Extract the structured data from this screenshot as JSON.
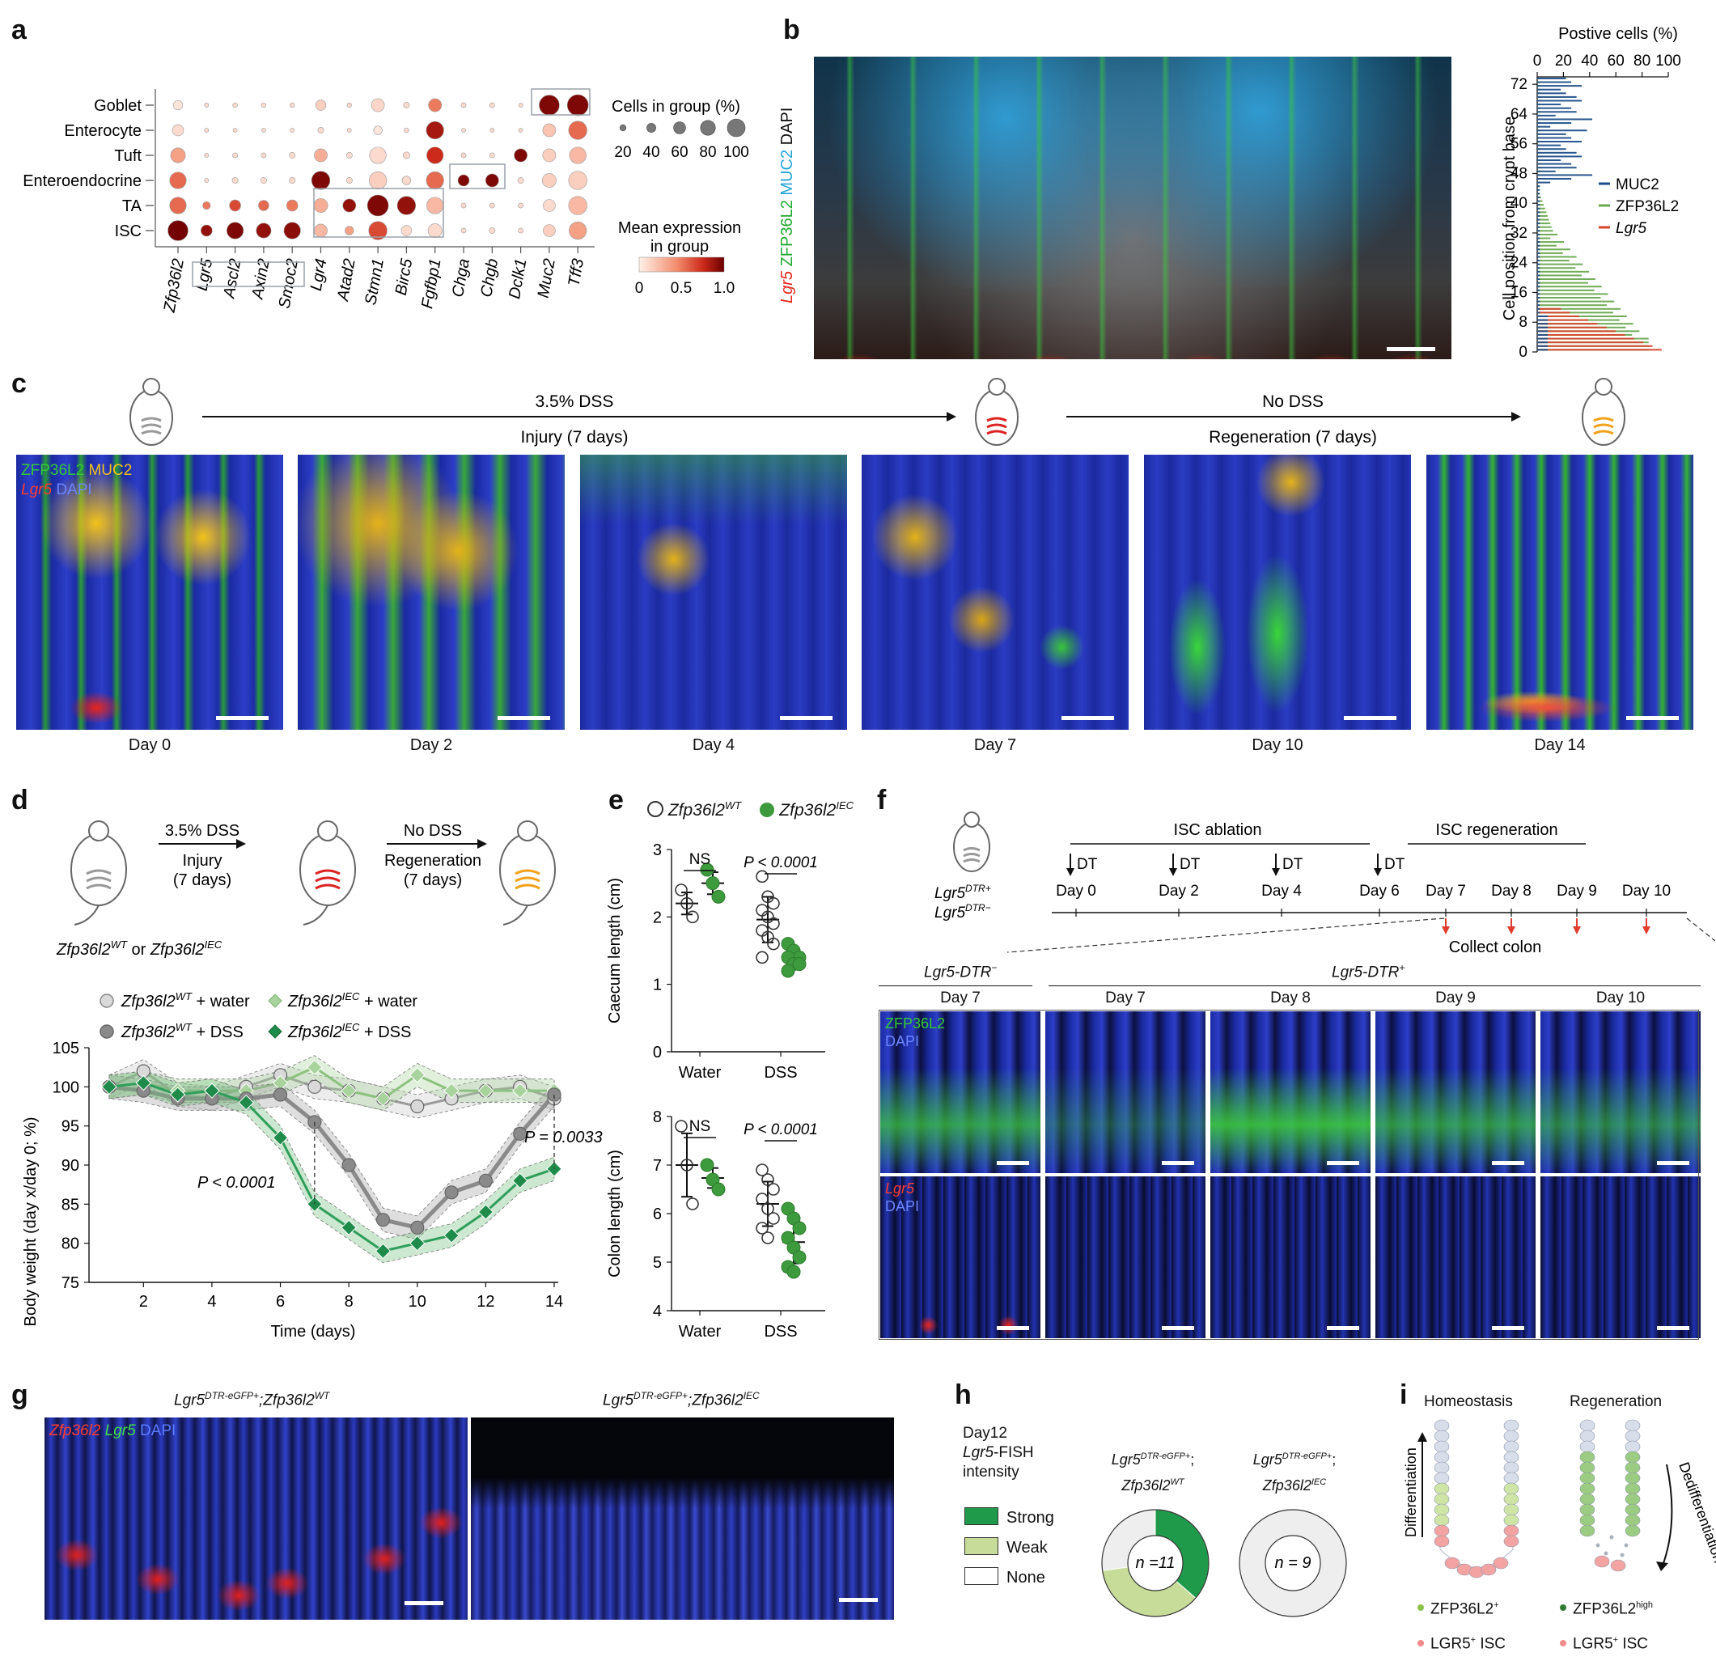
{
  "colors": {
    "dapi_blue": "#1f33b8",
    "zfp_green": "#33cc33",
    "muc2_yellow": "#f2c21a",
    "lgr5_red": "#e8241a",
    "wt_gray": "#8a8a8a",
    "iec_green": "#1e8b4a",
    "strong_green": "#1f9a4a",
    "weak_green": "#c8dc9a",
    "dot_red_dark": "#6b0000",
    "muc2_line": "#1d4e89",
    "zfp_line": "#6aa84f",
    "lgr5_line": "#d6452b"
  },
  "panel_a": {
    "label": "a",
    "row_labels": [
      "Goblet",
      "Enterocyte",
      "Tuft",
      "Enteroendocrine",
      "TA",
      "ISC"
    ],
    "gene_labels": [
      "Zfp36l2",
      "Lgr5",
      "Ascl2",
      "Axin2",
      "Smoc2",
      "Lgr4",
      "Atad2",
      "Stmn1",
      "Birc5",
      "Fgfbp1",
      "Chga",
      "Chgb",
      "Dclk1",
      "Muc2",
      "Tff3"
    ],
    "size_legend_title": "Cells in group (%)",
    "size_legend_values": [
      "20",
      "40",
      "60",
      "80",
      "100"
    ],
    "color_legend_title_1": "Mean expression",
    "color_legend_title_2": "in group",
    "color_legend_ticks": [
      "0",
      "0.5",
      "1.0"
    ]
  },
  "panel_b": {
    "label": "b",
    "stain_label_1": "Lgr5",
    "stain_label_2": "ZFP36L2",
    "stain_label_3": "MUC2",
    "stain_label_4": "DAPI",
    "chart_title": "Postive cells (%)",
    "y_title": "Cell position from crypt base",
    "x_ticks": [
      "0",
      "20",
      "40",
      "60",
      "80",
      "100"
    ],
    "y_ticks": [
      "0",
      "8",
      "16",
      "24",
      "32",
      "40",
      "48",
      "56",
      "64",
      "72"
    ],
    "legend": [
      "MUC2",
      "ZFP36L2",
      "Lgr5"
    ]
  },
  "panel_c": {
    "label": "c",
    "arrow1_top": "3.5% DSS",
    "arrow1_bottom": "Injury (7 days)",
    "arrow2_top": "No DSS",
    "arrow2_bottom": "Regeneration (7 days)",
    "stain_zfp": "ZFP36L2",
    "stain_muc2": "MUC2",
    "stain_lgr5": "Lgr5",
    "stain_dapi": "DAPI",
    "days": [
      "Day 0",
      "Day 2",
      "Day 4",
      "Day 7",
      "Day 10",
      "Day 14"
    ]
  },
  "panel_d": {
    "label": "d",
    "arrow1_top": "3.5% DSS",
    "arrow1_bottom_1": "Injury",
    "arrow1_bottom_2": "(7 days)",
    "arrow2_top": "No DSS",
    "arrow2_bottom_1": "Regeneration",
    "arrow2_bottom_2": "(7 days)",
    "genotype_wt": "Zfp36l2",
    "genotype_wt_sup": "WT",
    "genotype_or": " or ",
    "genotype_iec": "Zfp36l2",
    "genotype_iec_sup": "IEC",
    "legend_wt_water": "+ water",
    "legend_iec_water": "+ water",
    "legend_wt_dss": "+ DSS",
    "legend_iec_dss": "+ DSS",
    "y_title": "Body weight (day x/day 0; %)",
    "x_title": "Time (days)",
    "y_ticks": [
      "75",
      "80",
      "85",
      "90",
      "95",
      "100",
      "105"
    ],
    "x_ticks": [
      "2",
      "4",
      "6",
      "8",
      "10",
      "12",
      "14"
    ],
    "p1": "P < 0.0001",
    "p2": "P = 0.0033"
  },
  "chart_data": [
    {
      "type": "line",
      "panel": "d",
      "xlabel": "Time (days)",
      "ylabel": "Body weight (day x/day 0; %)",
      "ylim": [
        75,
        105
      ],
      "x": [
        1,
        2,
        3,
        4,
        5,
        6,
        7,
        8,
        9,
        10,
        11,
        12,
        13,
        14
      ],
      "series": [
        {
          "name": "Zfp36l2WT + water",
          "values": [
            100,
            102,
            99,
            98.5,
            100,
            101.5,
            100,
            99.5,
            98.5,
            97.5,
            98.5,
            99.5,
            100,
            98.5
          ]
        },
        {
          "name": "Zfp36l2IEC + water",
          "values": [
            100,
            100.5,
            99.5,
            99.5,
            99.5,
            100.5,
            102.5,
            99.5,
            98.5,
            101.5,
            99.5,
            99.5,
            99.5,
            99.5
          ]
        },
        {
          "name": "Zfp36l2WT + DSS",
          "values": [
            100,
            99.5,
            98.5,
            98.5,
            98.5,
            99,
            95.5,
            90,
            83,
            82,
            86.5,
            88,
            94,
            99
          ]
        },
        {
          "name": "Zfp36l2IEC + DSS",
          "values": [
            100,
            100.5,
            99,
            99.5,
            98,
            93.5,
            85,
            82,
            79,
            80,
            81,
            84,
            88,
            89.5
          ]
        }
      ]
    },
    {
      "type": "scatter",
      "panel": "e-caecum",
      "ylabel": "Caecum length (cm)",
      "ylim": [
        0,
        3
      ],
      "categories": [
        "Water",
        "DSS"
      ],
      "series": [
        {
          "name": "Zfp36l2WT",
          "values": [
            [
              2.4,
              2.2,
              2.0
            ],
            [
              2.6,
              2.3,
              2.2,
              2.1,
              2.0,
              1.9,
              1.8,
              1.7,
              1.6,
              1.4
            ]
          ]
        },
        {
          "name": "Zfp36l2IEC",
          "values": [
            [
              2.7,
              2.5,
              2.3
            ],
            [
              1.6,
              1.5,
              1.4,
              1.4,
              1.3,
              1.3,
              1.2
            ]
          ]
        }
      ]
    },
    {
      "type": "scatter",
      "panel": "e-colon",
      "ylabel": "Colon length (cm)",
      "ylim": [
        4,
        8
      ],
      "categories": [
        "Water",
        "DSS"
      ],
      "series": [
        {
          "name": "Zfp36l2WT",
          "values": [
            [
              7.8,
              7.0,
              6.2
            ],
            [
              6.9,
              6.7,
              6.5,
              6.3,
              6.1,
              5.9,
              5.7,
              5.5
            ]
          ]
        },
        {
          "name": "Zfp36l2IEC",
          "values": [
            [
              7.0,
              6.7,
              6.5
            ],
            [
              6.1,
              5.9,
              5.7,
              5.5,
              5.3,
              5.1,
              4.9,
              4.8
            ]
          ]
        }
      ]
    },
    {
      "type": "pie",
      "panel": "h-wt",
      "categories": [
        "Strong",
        "Weak",
        "None"
      ],
      "values": [
        4,
        4,
        3
      ]
    },
    {
      "type": "pie",
      "panel": "h-iec",
      "categories": [
        "Strong",
        "Weak",
        "None"
      ],
      "values": [
        0,
        0,
        9
      ]
    }
  ],
  "panel_e": {
    "label": "e",
    "legend_wt": "Zfp36l2",
    "legend_wt_sup": "WT",
    "legend_iec": "Zfp36l2",
    "legend_iec_sup": "IEC",
    "top_y_title": "Caecum length (cm)",
    "top_y_ticks": [
      "0",
      "1",
      "2",
      "3"
    ],
    "bottom_y_title": "Colon length (cm)",
    "bottom_y_ticks": [
      "4",
      "5",
      "6",
      "7",
      "8"
    ],
    "x_cats": [
      "Water",
      "DSS"
    ],
    "ns": "NS",
    "p": "P < 0.0001"
  },
  "panel_f": {
    "label": "f",
    "mouse_line_1": "Lgr5",
    "mouse_line_1_sup": "DTR+",
    "mouse_line_2": "Lgr5",
    "mouse_line_2_sup": "DTR−",
    "ablation": "ISC ablation",
    "regeneration": "ISC regeneration",
    "dt": "DT",
    "timeline_days": [
      "Day 0",
      "Day 2",
      "Day 4",
      "Day 6",
      "Day 7",
      "Day 8",
      "Day 9",
      "Day 10"
    ],
    "collect": "Collect colon",
    "group_neg": "Lgr5-DTR",
    "group_neg_sup": "−",
    "group_pos": "Lgr5-DTR",
    "group_pos_sup": "+",
    "columns": [
      "Day 7",
      "Day 7",
      "Day 8",
      "Day 9",
      "Day 10"
    ],
    "stain_zfp": "ZFP36L2",
    "stain_dapi": "DAPI",
    "stain_lgr5": "Lgr5"
  },
  "panel_g": {
    "label": "g",
    "title_left": "Lgr5",
    "title_left_sup": "DTR-eGFP+",
    "title_left_2": ";Zfp36l2",
    "title_left_sup2": "WT",
    "title_right": "Lgr5",
    "title_right_sup": "DTR-eGFP+",
    "title_right_2": ";Zfp36l2",
    "title_right_sup2": "IEC",
    "stain_zfp": "Zfp36l2",
    "stain_lgr5": "Lgr5",
    "stain_dapi": "DAPI"
  },
  "panel_h": {
    "label": "h",
    "title_1": "Day12",
    "title_2": "Lgr5",
    "title_2b": "-FISH",
    "title_3": "intensity",
    "legend": [
      "Strong",
      "Weak",
      "None"
    ],
    "wt_top": "Lgr5",
    "wt_top_sup": "DTR-eGFP+",
    "wt_top_suffix": ";",
    "wt_bottom": "Zfp36l2",
    "wt_bottom_sup": "WT",
    "iec_top": "Lgr5",
    "iec_top_sup": "DTR-eGFP+",
    "iec_top_suffix": ";",
    "iec_bottom": "Zfp36l2",
    "iec_bottom_sup": "IEC",
    "n_wt": "n =11",
    "n_iec": "n = 9"
  },
  "panel_i": {
    "label": "i",
    "homeostasis": "Homeostasis",
    "regeneration": "Regeneration",
    "differentiation": "Differentiation",
    "dedifferentiation": "Dedifferentiation",
    "legend_zfp_left": "ZFP36L2",
    "legend_zfp_left_sup": "+",
    "legend_lgr5_left": "LGR5",
    "legend_lgr5_left_sup": "+",
    "legend_lgr5_left_suffix": " ISC",
    "legend_zfp_right": "ZFP36L2",
    "legend_zfp_right_sup": "high",
    "legend_lgr5_right": "LGR5",
    "legend_lgr5_right_sup": "+",
    "legend_lgr5_right_suffix": " ISC"
  }
}
